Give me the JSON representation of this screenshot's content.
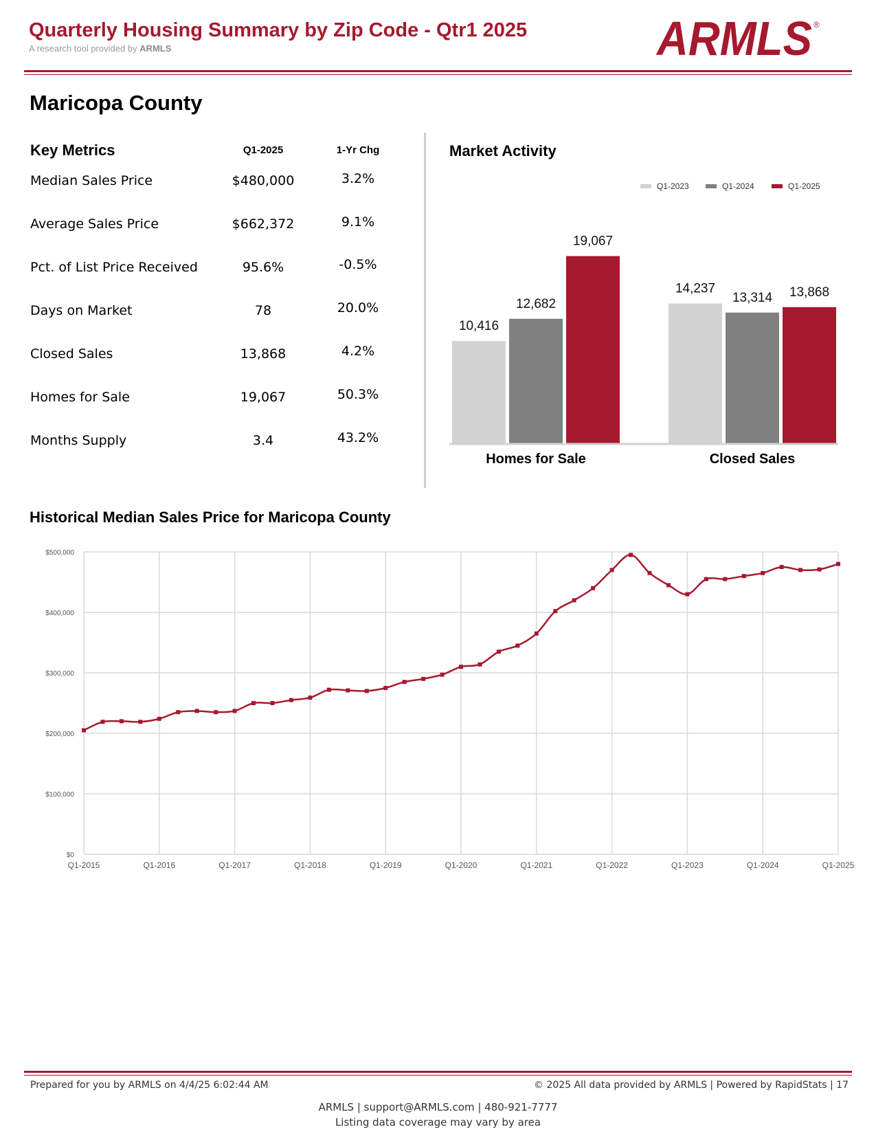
{
  "header": {
    "title": "Quarterly Housing Summary by Zip Code - Qtr1 2025",
    "subtitle_prefix": "A research tool provided by",
    "subtitle_brand": "ARMLS",
    "logo_text": "ARMLS",
    "logo_mark": "®"
  },
  "county": "Maricopa County",
  "key_metrics": {
    "heading": "Key Metrics",
    "col_period": "Q1-2025",
    "col_change": "1-Yr Chg",
    "rows": [
      {
        "label": "Median Sales Price",
        "value": "$480,000",
        "change": "3.2%"
      },
      {
        "label": "Average Sales Price",
        "value": "$662,372",
        "change": "9.1%"
      },
      {
        "label": "Pct. of List Price Received",
        "value": "95.6%",
        "change": "-0.5%"
      },
      {
        "label": "Days on Market",
        "value": "78",
        "change": "20.0%"
      },
      {
        "label": "Closed Sales",
        "value": "13,868",
        "change": "4.2%"
      },
      {
        "label": "Homes for Sale",
        "value": "19,067",
        "change": "50.3%"
      },
      {
        "label": "Months Supply",
        "value": "3.4",
        "change": "43.2%"
      }
    ]
  },
  "market_activity": {
    "heading": "Market Activity"
  },
  "historical": {
    "heading": "Historical Median Sales Price for Maricopa County"
  },
  "colors": {
    "brand_red": "#a6192e",
    "q1_2023": "#d3d3d3",
    "q1_2024": "#808080",
    "q1_2025": "#a6192e",
    "line": "#a6192e",
    "grid": "#d9d9d9"
  },
  "chart_data": [
    {
      "type": "bar",
      "title": "Market Activity",
      "categories": [
        "Homes for Sale",
        "Closed Sales"
      ],
      "series": [
        {
          "name": "Q1-2023",
          "values": [
            10416,
            14237
          ],
          "labels": [
            "10,416",
            "14,237"
          ]
        },
        {
          "name": "Q1-2024",
          "values": [
            12682,
            13314
          ],
          "labels": [
            "12,682",
            "13,314"
          ]
        },
        {
          "name": "Q1-2025",
          "values": [
            19067,
            13868
          ],
          "labels": [
            "19,067",
            "13,868"
          ]
        }
      ],
      "legend": "top-right",
      "ylim": [
        0,
        21000
      ],
      "grid": false
    },
    {
      "type": "line",
      "title": "Historical Median Sales Price for Maricopa County",
      "x": [
        "Q1-2015",
        "Q2-2015",
        "Q3-2015",
        "Q4-2015",
        "Q1-2016",
        "Q2-2016",
        "Q3-2016",
        "Q4-2016",
        "Q1-2017",
        "Q2-2017",
        "Q3-2017",
        "Q4-2017",
        "Q1-2018",
        "Q2-2018",
        "Q3-2018",
        "Q4-2018",
        "Q1-2019",
        "Q2-2019",
        "Q3-2019",
        "Q4-2019",
        "Q1-2020",
        "Q2-2020",
        "Q3-2020",
        "Q4-2020",
        "Q1-2021",
        "Q2-2021",
        "Q3-2021",
        "Q4-2021",
        "Q1-2022",
        "Q2-2022",
        "Q3-2022",
        "Q4-2022",
        "Q1-2023",
        "Q2-2023",
        "Q3-2023",
        "Q4-2023",
        "Q1-2024",
        "Q2-2024",
        "Q3-2024",
        "Q4-2024",
        "Q1-2025"
      ],
      "values": [
        205000,
        219000,
        220000,
        219000,
        224000,
        235000,
        237000,
        235000,
        237000,
        250000,
        250000,
        255000,
        259000,
        272000,
        271000,
        270000,
        275000,
        285000,
        290000,
        297000,
        310000,
        314000,
        335000,
        345000,
        365000,
        402000,
        420000,
        440000,
        470000,
        495000,
        465000,
        445000,
        430000,
        455000,
        455000,
        460000,
        465000,
        475000,
        470000,
        471000,
        480000
      ],
      "xticks": [
        "Q1-2015",
        "Q1-2016",
        "Q1-2017",
        "Q1-2018",
        "Q1-2019",
        "Q1-2020",
        "Q1-2021",
        "Q1-2022",
        "Q1-2023",
        "Q1-2024",
        "Q1-2025"
      ],
      "yticks": [
        "$0",
        "$100,000",
        "$200,000",
        "$300,000",
        "$400,000",
        "$500,000"
      ],
      "ylim": [
        0,
        500000
      ],
      "grid": true
    }
  ],
  "footer": {
    "prepared": "Prepared for you by ARMLS on 4/4/25 6:02:44 AM",
    "copyright": "© 2025 All data provided by ARMLS | Powered by RapidStats  | 17",
    "contact": "ARMLS | support@ARMLS.com | 480-921-7777",
    "coverage": "Listing data coverage may vary by area"
  }
}
